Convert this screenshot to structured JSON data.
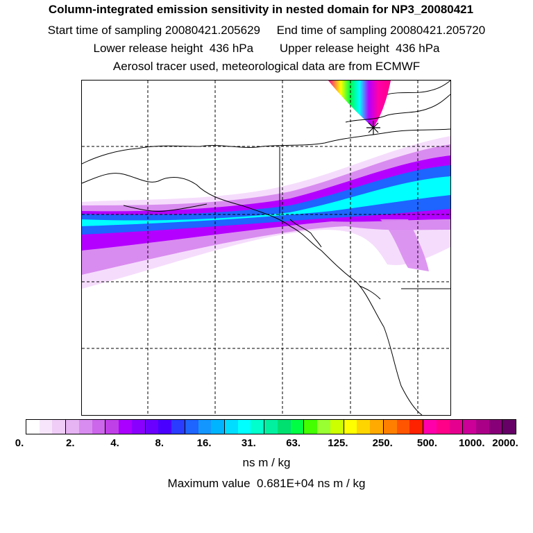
{
  "header": {
    "title": "Column-integrated emission sensitivity in nested domain for NP3_20080421",
    "start_label": "Start time of sampling 20080421.205629",
    "end_label": "End time of sampling 20080421.205720",
    "lower_label": "Lower release height  436 hPa",
    "upper_label": "Upper release height  436 hPa",
    "info_line": "Aerosol tracer used, meteorological data are from ECMWF"
  },
  "colorbar": {
    "tick_labels": [
      "0.",
      "2.",
      "4.",
      "8.",
      "16.",
      "31.",
      "63.",
      "125.",
      "250.",
      "500.",
      "1000.",
      "2000."
    ],
    "colors": [
      "#ffffff",
      "#f7e6fb",
      "#efcdf7",
      "#e6b3f3",
      "#d98cef",
      "#cc66eb",
      "#bf40e6",
      "#aa00ff",
      "#8a00ff",
      "#6a00ff",
      "#4a00ff",
      "#2a3cff",
      "#1e64ff",
      "#1496ff",
      "#00b4ff",
      "#00ddff",
      "#00ffff",
      "#00ffcc",
      "#00f0a0",
      "#00e070",
      "#00ff44",
      "#44ff00",
      "#99ff33",
      "#ccff00",
      "#ffff00",
      "#ffd500",
      "#ffaa00",
      "#ff8000",
      "#ff5500",
      "#ff2200",
      "#ff00aa",
      "#ff0088",
      "#e60090",
      "#cc0099",
      "#aa0088",
      "#880077",
      "#660066"
    ],
    "unit": "ns m / kg"
  },
  "footer": {
    "max_value_text": "Maximum value  0.681E+04 ns m / kg"
  },
  "map": {
    "receptor_marker": "star-cross",
    "plume_colors": {
      "low": "#f3d6fb",
      "mid_low": "#d98cef",
      "mid": "#b400ff",
      "blue": "#1e64ff",
      "cyan": "#00ffff",
      "high": "#ff0088"
    }
  }
}
